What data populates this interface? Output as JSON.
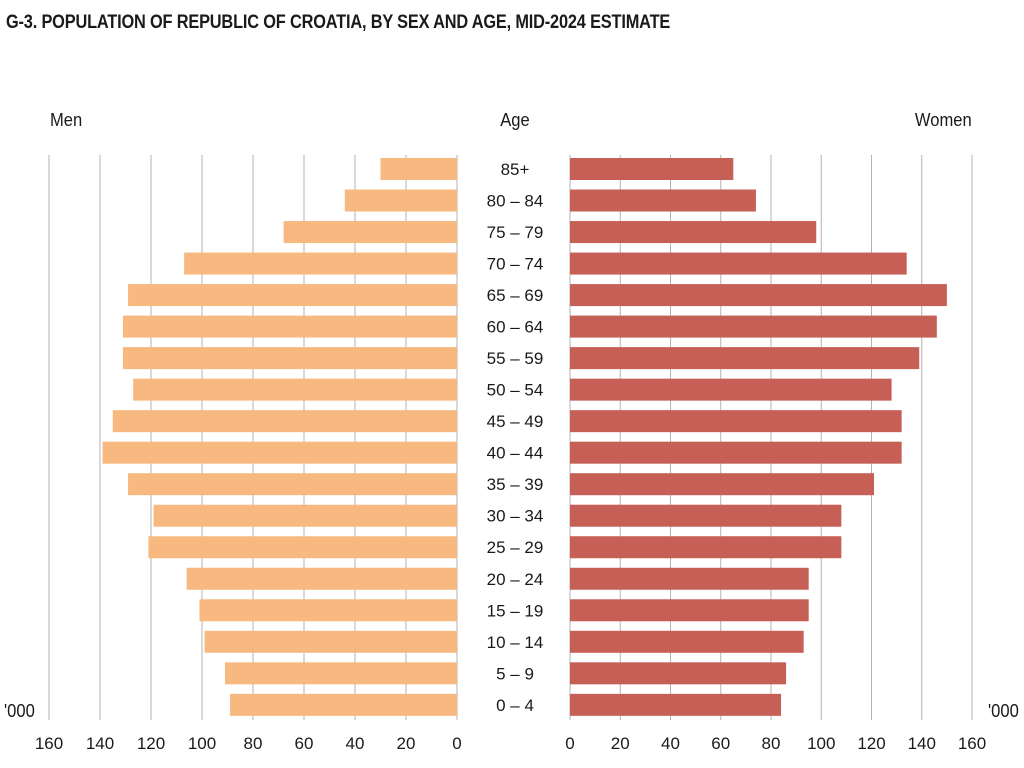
{
  "title": "G-3. POPULATION OF REPUBLIC OF CROATIA, BY SEX AND AGE, MID-2024 ESTIMATE",
  "headers": {
    "men": "Men",
    "age": "Age",
    "women": "Women"
  },
  "unit_label": "'000",
  "colors": {
    "men": "#f7b980",
    "women": "#c65f56",
    "grid": "#b3b3b3",
    "text": "#1a1a1a"
  },
  "chart_data": {
    "type": "bar",
    "subtype": "population-pyramid",
    "title": "G-3. POPULATION OF REPUBLIC OF CROATIA, BY SEX AND AGE, MID-2024 ESTIMATE",
    "unit": "'000",
    "categories": [
      "85+",
      "80 – 84",
      "75 – 79",
      "70 – 74",
      "65 – 69",
      "60 – 64",
      "55 – 59",
      "50 – 54",
      "45 – 49",
      "40 – 44",
      "35 – 39",
      "30 – 34",
      "25 – 29",
      "20 – 24",
      "15 – 19",
      "10 – 14",
      "5 – 9",
      "0 – 4"
    ],
    "series": [
      {
        "name": "Men",
        "values": [
          30,
          44,
          68,
          107,
          129,
          131,
          131,
          127,
          135,
          139,
          129,
          119,
          121,
          106,
          101,
          99,
          91,
          89
        ]
      },
      {
        "name": "Women",
        "values": [
          65,
          74,
          98,
          134,
          150,
          146,
          139,
          128,
          132,
          132,
          121,
          108,
          108,
          95,
          95,
          93,
          86,
          84
        ]
      }
    ],
    "xlim": [
      0,
      160
    ],
    "ticks": [
      0,
      20,
      40,
      60,
      80,
      100,
      120,
      140,
      160
    ],
    "grid": true
  }
}
